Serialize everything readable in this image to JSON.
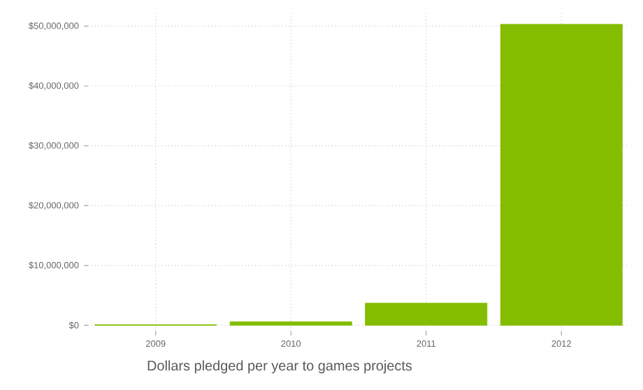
{
  "chart_data": {
    "type": "bar",
    "title": "Dollars pledged per year to games projects",
    "categories": [
      "2009",
      "2010",
      "2011",
      "2012"
    ],
    "values": [
      100000,
      600000,
      3700000,
      50300000
    ],
    "color": "#84bc00",
    "ylim": [
      -1000000,
      52500000
    ],
    "yticks": [
      {
        "value": 0,
        "label": "$0"
      },
      {
        "value": 10000000,
        "label": "$10,000,000"
      },
      {
        "value": 20000000,
        "label": "$20,000,000"
      },
      {
        "value": 30000000,
        "label": "$30,000,000"
      },
      {
        "value": 40000000,
        "label": "$40,000,000"
      },
      {
        "value": 50000000,
        "label": "$50,000,000"
      }
    ],
    "grid": true
  }
}
